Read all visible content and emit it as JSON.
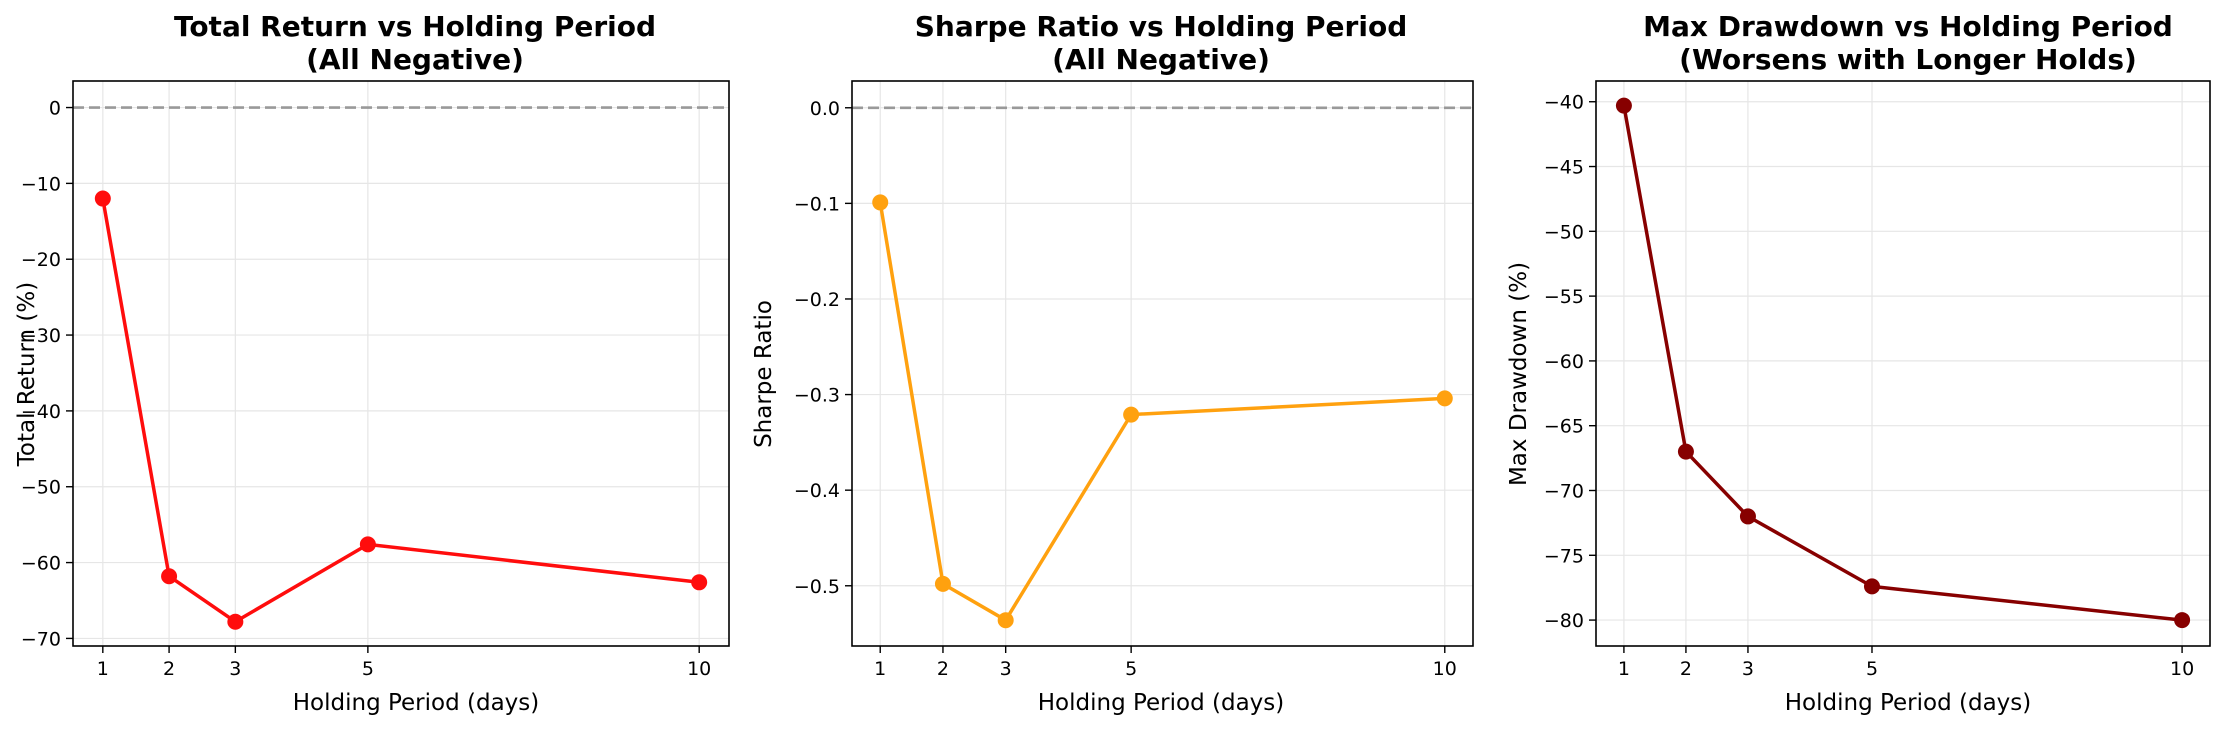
{
  "chart_data": [
    {
      "type": "line",
      "title": "Total Return vs Holding Period",
      "subtitle": "(All Negative)",
      "xlabel": "Holding Period (days)",
      "ylabel": "Total Return (%)",
      "x": [
        1,
        2,
        3,
        5,
        10
      ],
      "xticks": [
        "1",
        "2",
        "3",
        "5",
        "10"
      ],
      "xlim": [
        0.55,
        10.45
      ],
      "ylim": [
        -71,
        3.5
      ],
      "yticks": [
        0,
        -10,
        -20,
        -30,
        -40,
        -50,
        -60,
        -70
      ],
      "ytick_labels": [
        "0",
        "−10",
        "−20",
        "−30",
        "−40",
        "−50",
        "−60",
        "−70"
      ],
      "series": [
        {
          "values": [
            -12,
            -61.8,
            -67.8,
            -57.6,
            -62.6
          ],
          "color": "#ff0d0d"
        }
      ],
      "reference_line": 0,
      "grid": true
    },
    {
      "type": "line",
      "title": "Sharpe Ratio vs Holding Period",
      "subtitle": "(All Negative)",
      "xlabel": "Holding Period (days)",
      "ylabel": "Sharpe Ratio",
      "x": [
        1,
        2,
        3,
        5,
        10
      ],
      "xticks": [
        "1",
        "2",
        "3",
        "5",
        "10"
      ],
      "xlim": [
        0.55,
        10.45
      ],
      "ylim": [
        -0.563,
        0.028
      ],
      "yticks": [
        0,
        -0.1,
        -0.2,
        -0.3,
        -0.4,
        -0.5
      ],
      "ytick_labels": [
        "0.0",
        "−0.1",
        "−0.2",
        "−0.3",
        "−0.4",
        "−0.5"
      ],
      "series": [
        {
          "values": [
            -0.099,
            -0.498,
            -0.536,
            -0.321,
            -0.304
          ],
          "color": "#ffa10f"
        }
      ],
      "reference_line": 0,
      "grid": true
    },
    {
      "type": "line",
      "title": "Max Drawdown vs Holding Period",
      "subtitle": "(Worsens with Longer Holds)",
      "xlabel": "Holding Period (days)",
      "ylabel": "Max Drawdown (%)",
      "x": [
        1,
        2,
        3,
        5,
        10
      ],
      "xticks": [
        "1",
        "2",
        "3",
        "5",
        "10"
      ],
      "xlim": [
        0.55,
        10.45
      ],
      "ylim": [
        -82,
        -38.4
      ],
      "yticks": [
        -40,
        -45,
        -50,
        -55,
        -60,
        -65,
        -70,
        -75,
        -80
      ],
      "ytick_labels": [
        "−40",
        "−45",
        "−50",
        "−55",
        "−60",
        "−65",
        "−70",
        "−75",
        "−80"
      ],
      "series": [
        {
          "values": [
            -40.3,
            -67,
            -72,
            -77.4,
            -80
          ],
          "color": "#870000"
        }
      ],
      "reference_line": null,
      "grid": true
    }
  ],
  "colors": {
    "reference_line": "#999999",
    "grid": "#e6e6e6",
    "axes": "#000000"
  }
}
